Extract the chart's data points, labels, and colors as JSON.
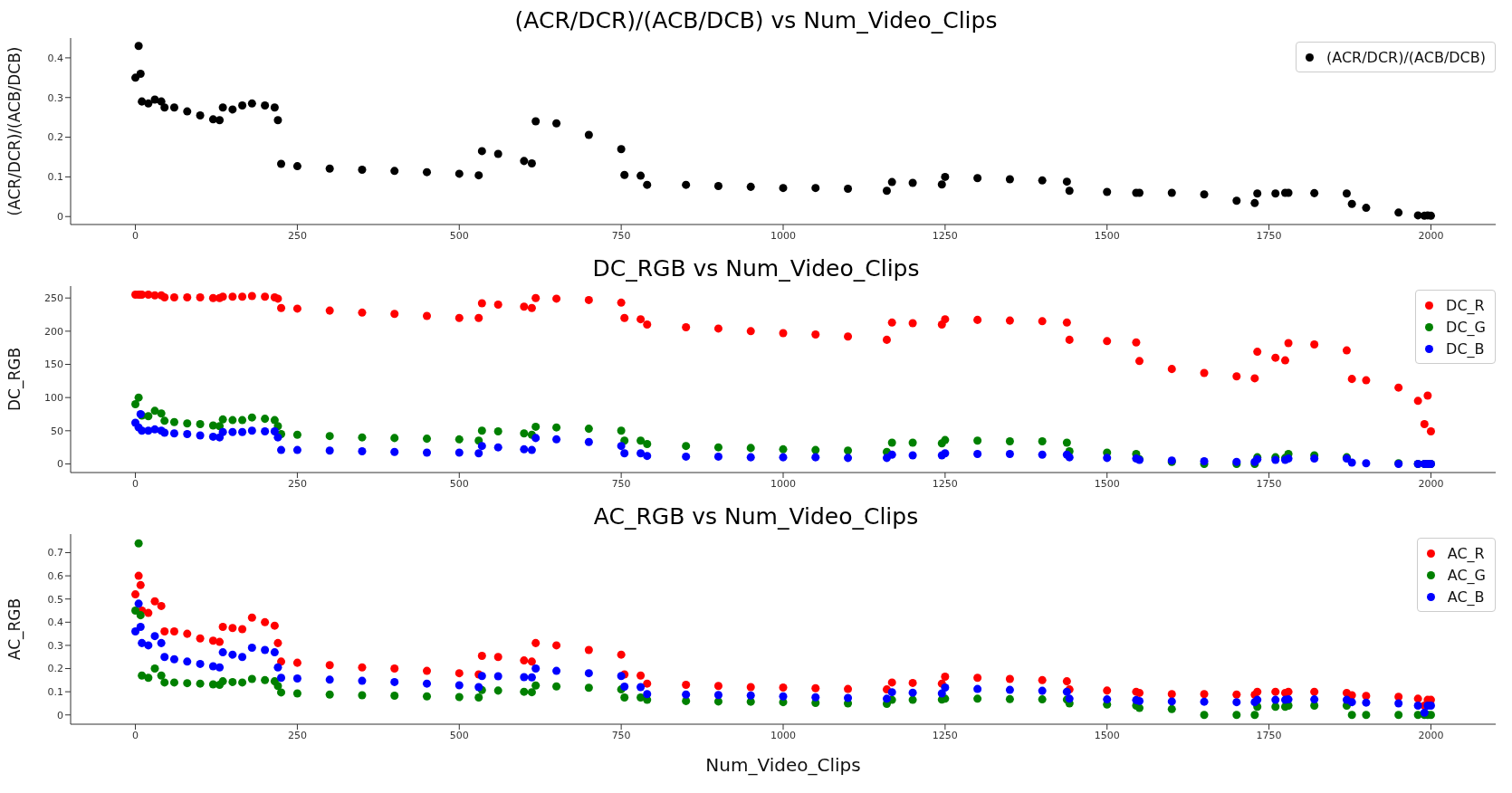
{
  "chart_data": [
    {
      "type": "scatter",
      "title": "(ACR/DCR)/(ACB/DCB) vs Num_Video_Clips",
      "ylabel": "(ACR/DCR)/(ACB/DCB)",
      "xlim": [
        -100,
        2100
      ],
      "xticks": [
        0,
        250,
        500,
        750,
        1000,
        1250,
        1500,
        1750,
        2000
      ],
      "ylim": [
        -0.02,
        0.45
      ],
      "yticks": [
        0.0,
        0.1,
        0.2,
        0.3,
        0.4
      ],
      "legend": "top right",
      "marker": "circle",
      "x": [
        0,
        5,
        8,
        10,
        20,
        30,
        40,
        45,
        60,
        80,
        100,
        120,
        130,
        135,
        150,
        165,
        180,
        200,
        215,
        220,
        225,
        250,
        300,
        350,
        400,
        450,
        500,
        530,
        535,
        560,
        600,
        612,
        618,
        650,
        700,
        750,
        755,
        780,
        790,
        850,
        900,
        950,
        1000,
        1050,
        1100,
        1160,
        1168,
        1200,
        1245,
        1250,
        1300,
        1350,
        1400,
        1438,
        1442,
        1500,
        1545,
        1550,
        1600,
        1650,
        1700,
        1728,
        1732,
        1760,
        1775,
        1780,
        1820,
        1870,
        1878,
        1900,
        1950,
        1980,
        1990,
        1995,
        2000
      ],
      "series": [
        {
          "name": "(ACR/DCR)/(ACB/DCB)",
          "color": "#000000",
          "values": [
            0.35,
            0.43,
            0.36,
            0.29,
            0.285,
            0.295,
            0.29,
            0.275,
            0.275,
            0.265,
            0.255,
            0.245,
            0.243,
            0.275,
            0.27,
            0.28,
            0.285,
            0.28,
            0.275,
            0.243,
            0.133,
            0.127,
            0.121,
            0.118,
            0.115,
            0.112,
            0.108,
            0.104,
            0.165,
            0.158,
            0.14,
            0.134,
            0.24,
            0.235,
            0.206,
            0.17,
            0.105,
            0.103,
            0.08,
            0.08,
            0.077,
            0.075,
            0.072,
            0.072,
            0.07,
            0.065,
            0.087,
            0.085,
            0.081,
            0.1,
            0.097,
            0.094,
            0.091,
            0.088,
            0.065,
            0.062,
            0.06,
            0.06,
            0.06,
            0.056,
            0.04,
            0.034,
            0.058,
            0.058,
            0.06,
            0.06,
            0.059,
            0.058,
            0.032,
            0.022,
            0.01,
            0.003,
            0.002,
            0.003,
            0.002
          ]
        }
      ]
    },
    {
      "type": "scatter",
      "title": "DC_RGB vs Num_Video_Clips",
      "ylabel": "DC_RGB",
      "xlim": [
        -100,
        2100
      ],
      "xticks": [
        0,
        250,
        500,
        750,
        1000,
        1250,
        1500,
        1750,
        2000
      ],
      "ylim": [
        -13,
        268
      ],
      "yticks": [
        0,
        50,
        100,
        150,
        200,
        250
      ],
      "legend": "top right",
      "marker": "circle",
      "x": [
        0,
        5,
        8,
        10,
        20,
        30,
        40,
        45,
        60,
        80,
        100,
        120,
        130,
        135,
        150,
        165,
        180,
        200,
        215,
        220,
        225,
        250,
        300,
        350,
        400,
        450,
        500,
        530,
        535,
        560,
        600,
        612,
        618,
        650,
        700,
        750,
        755,
        780,
        790,
        850,
        900,
        950,
        1000,
        1050,
        1100,
        1160,
        1168,
        1200,
        1245,
        1250,
        1300,
        1350,
        1400,
        1438,
        1442,
        1500,
        1545,
        1550,
        1600,
        1650,
        1700,
        1728,
        1732,
        1760,
        1775,
        1780,
        1820,
        1870,
        1878,
        1900,
        1950,
        1980,
        1990,
        1995,
        2000
      ],
      "series": [
        {
          "name": "DC_R",
          "color": "#ff0000",
          "values": [
            255,
            255,
            255,
            255,
            255,
            254,
            254,
            251,
            251,
            251,
            251,
            250,
            250,
            252,
            252,
            252,
            253,
            252,
            251,
            249,
            235,
            234,
            231,
            228,
            226,
            223,
            220,
            220,
            242,
            240,
            237,
            235,
            250,
            249,
            247,
            243,
            220,
            218,
            210,
            206,
            204,
            200,
            197,
            195,
            192,
            187,
            213,
            212,
            210,
            218,
            217,
            216,
            215,
            213,
            187,
            185,
            183,
            155,
            143,
            137,
            132,
            129,
            169,
            160,
            156,
            182,
            180,
            171,
            128,
            126,
            115,
            95,
            60,
            103,
            49
          ]
        },
        {
          "name": "DC_G",
          "color": "#008000",
          "values": [
            90,
            100,
            null,
            73,
            72,
            80,
            76,
            65,
            63,
            61,
            60,
            58,
            57,
            67,
            66,
            66,
            70,
            68,
            66,
            57,
            45,
            44,
            42,
            40,
            39,
            38,
            37,
            35,
            50,
            49,
            46,
            44,
            56,
            55,
            53,
            50,
            35,
            35,
            30,
            27,
            25,
            24,
            22,
            21,
            20,
            18,
            32,
            32,
            31,
            36,
            35,
            34,
            34,
            32,
            19,
            17,
            15,
            7,
            3,
            0,
            0,
            0,
            10,
            10,
            9,
            15,
            13,
            10,
            null,
            null,
            1,
            0,
            0,
            0,
            0
          ]
        },
        {
          "name": "DC_B",
          "color": "#0000ff",
          "values": [
            62,
            55,
            75,
            50,
            50,
            52,
            50,
            47,
            46,
            45,
            43,
            41,
            40,
            48,
            48,
            48,
            50,
            49,
            49,
            40,
            21,
            21,
            20,
            19,
            18,
            17,
            17,
            16,
            27,
            25,
            22,
            21,
            39,
            37,
            33,
            27,
            16,
            16,
            12,
            11,
            11,
            10,
            10,
            10,
            9,
            9,
            14,
            13,
            13,
            16,
            15,
            15,
            14,
            14,
            10,
            9,
            8,
            6,
            5,
            4,
            3,
            3,
            7,
            6,
            6,
            8,
            8,
            8,
            2,
            1,
            0,
            0,
            0,
            0,
            0
          ]
        }
      ]
    },
    {
      "type": "scatter",
      "title": "AC_RGB vs Num_Video_Clips",
      "xlabel": "Num_Video_Clips",
      "ylabel": "AC_RGB",
      "xlim": [
        -100,
        2100
      ],
      "xticks": [
        0,
        250,
        500,
        750,
        1000,
        1250,
        1500,
        1750,
        2000
      ],
      "ylim": [
        -0.04,
        0.78
      ],
      "yticks": [
        0.0,
        0.1,
        0.2,
        0.3,
        0.4,
        0.5,
        0.6,
        0.7
      ],
      "legend": "top right",
      "marker": "circle",
      "x": [
        0,
        5,
        8,
        10,
        20,
        30,
        40,
        45,
        60,
        80,
        100,
        120,
        130,
        135,
        150,
        165,
        180,
        200,
        215,
        220,
        225,
        250,
        300,
        350,
        400,
        450,
        500,
        530,
        535,
        560,
        600,
        612,
        618,
        650,
        700,
        750,
        755,
        780,
        790,
        850,
        900,
        950,
        1000,
        1050,
        1100,
        1160,
        1168,
        1200,
        1245,
        1250,
        1300,
        1350,
        1400,
        1438,
        1442,
        1500,
        1545,
        1550,
        1600,
        1650,
        1700,
        1728,
        1732,
        1760,
        1775,
        1780,
        1820,
        1870,
        1878,
        1900,
        1950,
        1980,
        1990,
        1995,
        2000
      ],
      "series": [
        {
          "name": "AC_R",
          "color": "#ff0000",
          "values": [
            0.52,
            0.6,
            0.56,
            0.45,
            0.44,
            0.49,
            0.47,
            0.36,
            0.36,
            0.35,
            0.33,
            0.32,
            0.315,
            0.38,
            0.375,
            0.37,
            0.42,
            0.4,
            0.385,
            0.31,
            0.23,
            0.225,
            0.215,
            0.205,
            0.2,
            0.19,
            0.18,
            0.175,
            0.255,
            0.25,
            0.235,
            0.23,
            0.31,
            0.3,
            0.28,
            0.26,
            0.175,
            0.17,
            0.135,
            0.13,
            0.125,
            0.12,
            0.118,
            0.115,
            0.112,
            0.11,
            0.14,
            0.138,
            0.135,
            0.165,
            0.16,
            0.155,
            0.15,
            0.145,
            0.11,
            0.105,
            0.1,
            0.095,
            0.09,
            0.09,
            0.088,
            0.087,
            0.1,
            0.1,
            0.095,
            0.1,
            0.1,
            0.095,
            0.085,
            0.082,
            0.078,
            0.07,
            0.04,
            0.065,
            0.065
          ]
        },
        {
          "name": "AC_G",
          "color": "#008000",
          "values": [
            0.45,
            0.74,
            0.43,
            0.17,
            0.16,
            0.2,
            0.17,
            0.14,
            0.14,
            0.137,
            0.135,
            0.132,
            0.13,
            0.145,
            0.142,
            0.14,
            0.155,
            0.15,
            0.145,
            0.125,
            0.097,
            0.093,
            0.088,
            0.085,
            0.083,
            0.08,
            0.077,
            0.075,
            0.107,
            0.105,
            0.1,
            0.098,
            0.127,
            0.123,
            0.117,
            0.11,
            0.075,
            0.075,
            0.065,
            0.06,
            0.058,
            0.057,
            0.055,
            0.052,
            0.05,
            0.048,
            0.065,
            0.065,
            0.066,
            0.07,
            0.07,
            0.068,
            0.067,
            0.066,
            0.05,
            0.045,
            0.04,
            0.03,
            0.025,
            0,
            0,
            0,
            0.035,
            0.035,
            0.035,
            0.04,
            0.04,
            0.04,
            0,
            0,
            0,
            0,
            0,
            0,
            0
          ]
        },
        {
          "name": "AC_B",
          "color": "#0000ff",
          "values": [
            0.36,
            0.48,
            0.38,
            0.31,
            0.3,
            0.34,
            0.31,
            0.25,
            0.24,
            0.23,
            0.22,
            0.21,
            0.205,
            0.27,
            0.26,
            0.25,
            0.29,
            0.28,
            0.27,
            0.205,
            0.16,
            0.157,
            0.152,
            0.147,
            0.142,
            0.135,
            0.128,
            0.12,
            0.168,
            0.167,
            0.163,
            0.162,
            0.2,
            0.19,
            0.18,
            0.168,
            0.122,
            0.12,
            0.09,
            0.088,
            0.086,
            0.084,
            0.08,
            0.076,
            0.073,
            0.07,
            0.098,
            0.096,
            0.093,
            0.118,
            0.112,
            0.108,
            0.104,
            0.1,
            0.07,
            0.067,
            0.064,
            0.06,
            0.058,
            0.057,
            0.055,
            0.055,
            0.065,
            0.065,
            0.065,
            0.067,
            0.067,
            0.065,
            0.055,
            0.053,
            0.05,
            0.04,
            0.01,
            0.04,
            0.04
          ]
        }
      ]
    }
  ]
}
